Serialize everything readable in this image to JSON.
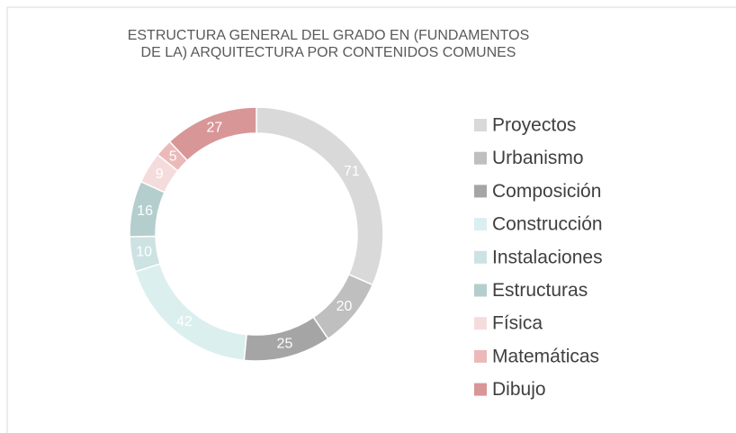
{
  "chart_data": {
    "type": "donut",
    "title": "ESTRUCTURA GENERAL DEL GRADO EN (FUNDAMENTOS DE LA) ARQUITECTURA POR CONTENIDOS COMUNES",
    "categories": [
      "Proyectos",
      "Urbanismo",
      "Composición",
      "Construcción",
      "Instalaciones",
      "Estructuras",
      "Física",
      "Matemáticas",
      "Dibujo"
    ],
    "values": [
      71,
      20,
      25,
      42,
      10,
      16,
      9,
      5,
      27
    ],
    "colors": [
      "#d9d9d9",
      "#bfbfbf",
      "#a5a5a5",
      "#dcefef",
      "#cde2e2",
      "#b4cece",
      "#f5dcdc",
      "#ecb9b9",
      "#d99697"
    ],
    "legend": "right"
  }
}
